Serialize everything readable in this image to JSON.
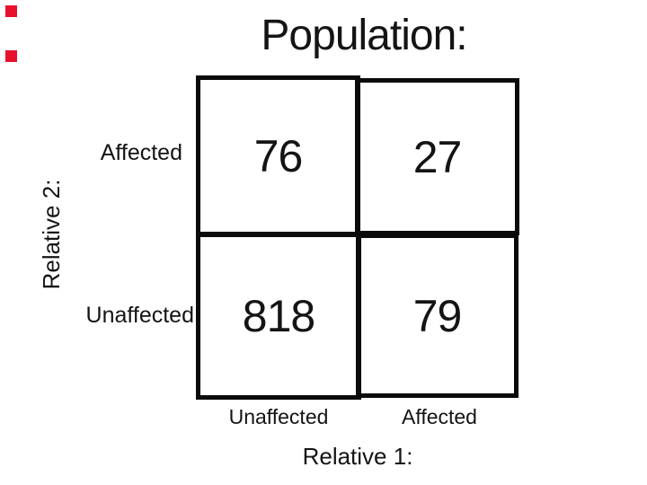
{
  "slide": {
    "title": "Population:",
    "markers": {
      "count": 2,
      "color": "#e8112d"
    },
    "colors": {
      "background": "#ffffff",
      "line": "#0b0b0b",
      "text": "#141414",
      "marker_red": "#e8112d"
    }
  },
  "chart_data": {
    "type": "table",
    "title": "Population:",
    "x_axis": {
      "label": "Relative 1:",
      "categories": [
        "Unaffected",
        "Affected"
      ]
    },
    "y_axis": {
      "label": "Relative 2:",
      "categories": [
        "Affected",
        "Unaffected"
      ]
    },
    "cells": [
      [
        76,
        27
      ],
      [
        818,
        79
      ]
    ],
    "layout_hint": "2x2 contingency table; rows top-to-bottom = Relative 2: Affected, Unaffected; columns left-to-right = Relative 1: Unaffected, Affected"
  }
}
